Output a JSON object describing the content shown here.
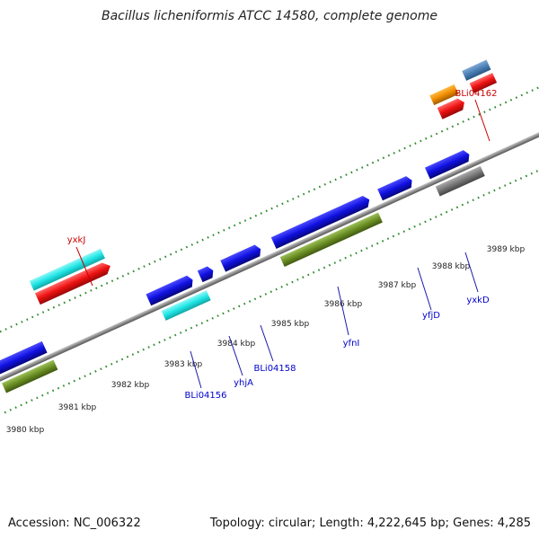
{
  "title": "Bacillus licheniformis ATCC 14580, complete genome",
  "footer": {
    "accession": "Accession: NC_006322",
    "summary": "Topology: circular; Length: 4,222,645 bp; Genes: 4,285"
  },
  "colors": {
    "backbone": "#8c8c8c",
    "tick": "#2e8b2e",
    "label_red": "#cc0000",
    "label_blue": "#0000cc",
    "blue": "#1010e0",
    "cyan": "#20e6e6",
    "red": "#ee1111",
    "olive": "#6b8e23",
    "gray": "#777777",
    "orange": "#f08c00",
    "steel": "#4a7fb5"
  },
  "tick_labels": [
    "3980 kbp",
    "3981 kbp",
    "3982 kbp",
    "3983 kbp",
    "3984 kbp",
    "3985 kbp",
    "3986 kbp",
    "3987 kbp",
    "3988 kbp",
    "3989 kbp"
  ],
  "gene_labels": [
    "yxkJ",
    "BLi04162",
    "BLi04156",
    "yhjA",
    "BLi04158",
    "yfnI",
    "yfjD",
    "yxkD"
  ]
}
